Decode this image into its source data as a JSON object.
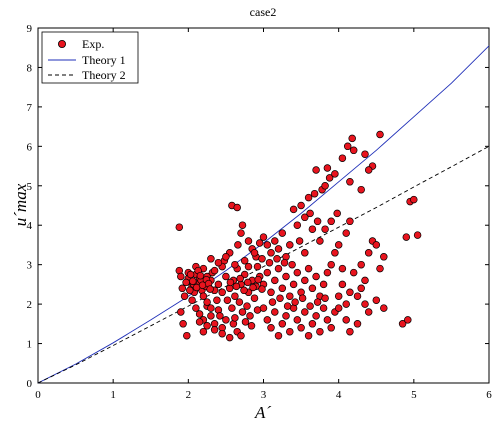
{
  "chart_data": {
    "type": "scatter",
    "title": "case2",
    "xlabel": "A´",
    "ylabel": "u´max",
    "xlim": [
      0,
      6
    ],
    "ylim": [
      0,
      9
    ],
    "xticks": [
      "0",
      "1",
      "2",
      "3",
      "4",
      "5",
      "6"
    ],
    "yticks": [
      "0",
      "1",
      "2",
      "3",
      "4",
      "5",
      "6",
      "7",
      "8",
      "9"
    ],
    "grid": false,
    "legend_position": "top-left",
    "legend": [
      "Exp.",
      "Theory 1",
      "Theory 2"
    ],
    "colors": {
      "exp_fill": "#e8141e",
      "exp_edge": "#000000",
      "theory1": "#1f2fb8",
      "theory2": "#000000"
    },
    "series": [
      {
        "name": "Exp.",
        "kind": "scatter",
        "points": [
          [
            1.88,
            3.95
          ],
          [
            1.88,
            2.85
          ],
          [
            1.9,
            2.7
          ],
          [
            1.92,
            2.4
          ],
          [
            1.95,
            2.2
          ],
          [
            1.9,
            1.8
          ],
          [
            1.93,
            1.5
          ],
          [
            1.98,
            1.2
          ],
          [
            2.0,
            2.8
          ],
          [
            2.02,
            2.6
          ],
          [
            2.05,
            2.45
          ],
          [
            2.08,
            2.3
          ],
          [
            2.1,
            2.75
          ],
          [
            2.12,
            2.5
          ],
          [
            2.15,
            2.65
          ],
          [
            2.18,
            2.35
          ],
          [
            2.2,
            2.9
          ],
          [
            2.22,
            2.55
          ],
          [
            2.25,
            2.7
          ],
          [
            2.28,
            2.4
          ],
          [
            2.3,
            2.6
          ],
          [
            2.32,
            2.8
          ],
          [
            2.05,
            2.1
          ],
          [
            2.1,
            1.9
          ],
          [
            2.15,
            1.75
          ],
          [
            2.2,
            1.6
          ],
          [
            2.25,
            1.95
          ],
          [
            2.3,
            1.7
          ],
          [
            2.35,
            1.5
          ],
          [
            2.4,
            1.85
          ],
          [
            2.45,
            1.4
          ],
          [
            2.5,
            1.6
          ],
          [
            2.1,
            2.95
          ],
          [
            2.0,
            2.65
          ],
          [
            1.97,
            2.55
          ],
          [
            2.03,
            2.75
          ],
          [
            2.07,
            2.5
          ],
          [
            2.13,
            2.85
          ],
          [
            2.17,
            2.6
          ],
          [
            2.23,
            2.45
          ],
          [
            2.4,
            2.5
          ],
          [
            2.45,
            2.3
          ],
          [
            2.5,
            2.7
          ],
          [
            2.55,
            2.4
          ],
          [
            2.6,
            2.6
          ],
          [
            2.62,
            2.2
          ],
          [
            2.65,
            2.9
          ],
          [
            2.7,
            2.5
          ],
          [
            2.75,
            2.75
          ],
          [
            2.8,
            2.3
          ],
          [
            2.85,
            2.6
          ],
          [
            2.9,
            2.45
          ],
          [
            2.52,
            2.1
          ],
          [
            2.58,
            1.9
          ],
          [
            2.68,
            2.05
          ],
          [
            2.72,
            1.8
          ],
          [
            2.78,
            1.95
          ],
          [
            2.82,
            1.7
          ],
          [
            2.88,
            2.15
          ],
          [
            2.92,
            1.85
          ],
          [
            2.95,
            2.7
          ],
          [
            2.48,
            3.1
          ],
          [
            2.55,
            3.3
          ],
          [
            2.62,
            3.0
          ],
          [
            2.66,
            3.5
          ],
          [
            2.58,
            4.5
          ],
          [
            2.65,
            4.45
          ],
          [
            2.72,
            4.0
          ],
          [
            2.7,
            3.8
          ],
          [
            2.8,
            3.6
          ],
          [
            2.85,
            3.4
          ],
          [
            2.9,
            3.2
          ],
          [
            2.95,
            3.55
          ],
          [
            2.6,
            1.5
          ],
          [
            2.65,
            1.3
          ],
          [
            2.7,
            1.2
          ],
          [
            2.55,
            1.15
          ],
          [
            2.45,
            1.25
          ],
          [
            2.35,
            1.35
          ],
          [
            2.25,
            1.45
          ],
          [
            2.2,
            1.3
          ],
          [
            2.15,
            1.55
          ],
          [
            2.3,
            1.9
          ],
          [
            2.38,
            2.1
          ],
          [
            2.42,
            1.7
          ],
          [
            2.62,
            1.65
          ],
          [
            2.76,
            1.55
          ],
          [
            2.84,
            1.45
          ],
          [
            3.0,
            2.5
          ],
          [
            3.05,
            2.8
          ],
          [
            3.1,
            2.3
          ],
          [
            3.15,
            2.6
          ],
          [
            3.2,
            2.9
          ],
          [
            3.25,
            2.4
          ],
          [
            3.3,
            2.7
          ],
          [
            3.35,
            2.2
          ],
          [
            3.4,
            2.5
          ],
          [
            3.45,
            2.8
          ],
          [
            3.5,
            2.3
          ],
          [
            3.55,
            2.6
          ],
          [
            3.6,
            2.9
          ],
          [
            3.65,
            2.4
          ],
          [
            3.7,
            2.7
          ],
          [
            3.75,
            2.2
          ],
          [
            3.0,
            3.7
          ],
          [
            3.05,
            3.5
          ],
          [
            3.1,
            3.3
          ],
          [
            3.15,
            3.6
          ],
          [
            3.2,
            3.4
          ],
          [
            3.25,
            3.8
          ],
          [
            3.3,
            3.2
          ],
          [
            3.35,
            3.5
          ],
          [
            3.4,
            4.4
          ],
          [
            3.45,
            4.0
          ],
          [
            3.5,
            4.5
          ],
          [
            3.55,
            4.2
          ],
          [
            3.6,
            4.7
          ],
          [
            3.62,
            4.3
          ],
          [
            3.68,
            4.8
          ],
          [
            3.72,
            4.1
          ],
          [
            3.78,
            4.9
          ],
          [
            3.82,
            5.0
          ],
          [
            3.88,
            5.2
          ],
          [
            3.7,
            5.4
          ],
          [
            3.85,
            5.45
          ],
          [
            3.95,
            5.3
          ],
          [
            4.05,
            5.7
          ],
          [
            4.12,
            6.0
          ],
          [
            4.15,
            5.1
          ],
          [
            4.18,
            6.2
          ],
          [
            4.2,
            5.9
          ],
          [
            4.35,
            5.8
          ],
          [
            4.45,
            5.5
          ],
          [
            4.55,
            6.3
          ],
          [
            4.3,
            4.9
          ],
          [
            4.4,
            5.4
          ],
          [
            3.0,
            1.9
          ],
          [
            3.05,
            1.6
          ],
          [
            3.1,
            1.4
          ],
          [
            3.15,
            1.8
          ],
          [
            3.2,
            1.2
          ],
          [
            3.25,
            1.5
          ],
          [
            3.3,
            1.7
          ],
          [
            3.35,
            1.3
          ],
          [
            3.4,
            1.9
          ],
          [
            3.45,
            1.6
          ],
          [
            3.5,
            1.4
          ],
          [
            3.55,
            1.8
          ],
          [
            3.6,
            1.2
          ],
          [
            3.65,
            1.5
          ],
          [
            3.7,
            1.7
          ],
          [
            3.75,
            1.3
          ],
          [
            3.8,
            1.9
          ],
          [
            3.85,
            1.6
          ],
          [
            3.9,
            1.4
          ],
          [
            3.95,
            1.8
          ],
          [
            4.0,
            2.2
          ],
          [
            4.05,
            2.5
          ],
          [
            4.1,
            2.0
          ],
          [
            4.15,
            2.3
          ],
          [
            3.8,
            2.5
          ],
          [
            3.85,
            2.8
          ],
          [
            3.9,
            3.0
          ],
          [
            3.95,
            3.3
          ],
          [
            4.0,
            3.5
          ],
          [
            4.05,
            2.9
          ],
          [
            4.1,
            3.8
          ],
          [
            4.15,
            4.1
          ],
          [
            3.82,
            3.9
          ],
          [
            3.9,
            4.1
          ],
          [
            3.98,
            4.3
          ],
          [
            3.75,
            3.6
          ],
          [
            3.65,
            3.9
          ],
          [
            3.55,
            3.3
          ],
          [
            3.48,
            3.6
          ],
          [
            3.38,
            3.0
          ],
          [
            4.3,
            3.0
          ],
          [
            4.35,
            2.6
          ],
          [
            4.4,
            3.3
          ],
          [
            4.45,
            3.6
          ],
          [
            4.5,
            3.5
          ],
          [
            4.55,
            2.9
          ],
          [
            4.6,
            3.2
          ],
          [
            4.3,
            2.4
          ],
          [
            4.25,
            1.5
          ],
          [
            4.4,
            1.8
          ],
          [
            4.6,
            1.9
          ],
          [
            4.85,
            1.5
          ],
          [
            4.92,
            1.6
          ],
          [
            4.95,
            4.6
          ],
          [
            5.0,
            4.65
          ],
          [
            4.9,
            3.7
          ],
          [
            5.05,
            3.75
          ],
          [
            4.5,
            2.1
          ],
          [
            4.2,
            2.8
          ],
          [
            4.1,
            1.6
          ],
          [
            4.0,
            1.9
          ],
          [
            4.15,
            1.3
          ],
          [
            4.25,
            2.2
          ],
          [
            4.35,
            2.0
          ],
          [
            2.35,
            2.85
          ],
          [
            2.45,
            2.95
          ],
          [
            2.5,
            3.2
          ],
          [
            2.4,
            3.05
          ],
          [
            2.3,
            3.15
          ],
          [
            2.2,
            2.2
          ],
          [
            2.25,
            2.05
          ],
          [
            2.35,
            2.35
          ],
          [
            2.75,
            3.1
          ],
          [
            2.8,
            2.95
          ],
          [
            2.88,
            3.3
          ],
          [
            2.92,
            2.95
          ],
          [
            2.98,
            3.15
          ],
          [
            3.08,
            3.05
          ],
          [
            3.18,
            3.15
          ],
          [
            3.28,
            3.05
          ],
          [
            3.12,
            2.05
          ],
          [
            3.22,
            2.15
          ],
          [
            3.32,
            1.95
          ],
          [
            3.42,
            2.05
          ],
          [
            3.52,
            2.15
          ],
          [
            3.62,
            1.95
          ],
          [
            3.72,
            2.05
          ],
          [
            3.82,
            2.15
          ],
          [
            2.02,
            2.35
          ],
          [
            2.06,
            2.58
          ],
          [
            2.11,
            2.42
          ],
          [
            2.16,
            2.72
          ],
          [
            2.19,
            2.48
          ],
          [
            2.24,
            2.62
          ],
          [
            2.27,
            2.52
          ],
          [
            2.29,
            2.38
          ],
          [
            2.56,
            2.55
          ],
          [
            2.64,
            2.45
          ],
          [
            2.69,
            2.65
          ],
          [
            2.74,
            2.35
          ],
          [
            2.79,
            2.55
          ],
          [
            2.86,
            2.42
          ],
          [
            2.93,
            2.62
          ],
          [
            2.98,
            2.38
          ]
        ]
      },
      {
        "name": "Theory 1",
        "kind": "line",
        "style": "solid",
        "points": [
          [
            0,
            0
          ],
          [
            0.5,
            0.48
          ],
          [
            1,
            1.02
          ],
          [
            1.5,
            1.6
          ],
          [
            2,
            2.2
          ],
          [
            2.5,
            2.85
          ],
          [
            3,
            3.55
          ],
          [
            3.5,
            4.3
          ],
          [
            4,
            5.1
          ],
          [
            4.5,
            5.9
          ],
          [
            5,
            6.75
          ],
          [
            5.5,
            7.6
          ],
          [
            6,
            8.55
          ]
        ]
      },
      {
        "name": "Theory 2",
        "kind": "line",
        "style": "dashed",
        "points": [
          [
            0,
            0
          ],
          [
            0.5,
            0.46
          ],
          [
            1,
            0.95
          ],
          [
            1.5,
            1.45
          ],
          [
            2,
            1.95
          ],
          [
            2.5,
            2.45
          ],
          [
            3,
            2.95
          ],
          [
            3.5,
            3.45
          ],
          [
            4,
            3.95
          ],
          [
            4.5,
            4.45
          ],
          [
            5,
            4.97
          ],
          [
            5.5,
            5.48
          ],
          [
            6,
            6.0
          ]
        ]
      }
    ]
  }
}
